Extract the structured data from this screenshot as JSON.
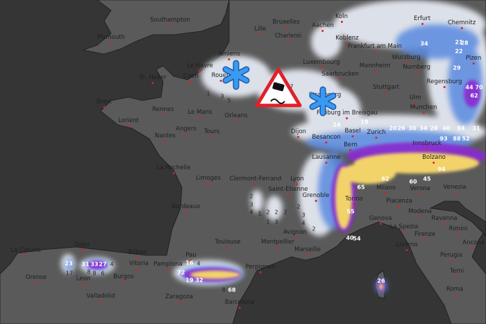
{
  "map": {
    "cities": [
      "Southampton",
      "Plymouth",
      "St. Helier",
      "Le Havre",
      "Caen",
      "Amiens",
      "Rouen",
      "Brest",
      "Rennes",
      "Le Mans",
      "Orleans",
      "Lorient",
      "Angers",
      "Tours",
      "Nantes",
      "La Rochelle",
      "Limoges",
      "Bordeaux",
      "Toulouse",
      "Clermont-Ferrand",
      "Lyon",
      "Saint-Etienne",
      "Grenoble",
      "Avignon",
      "Montpellier",
      "Marseille",
      "Perpignan",
      "Barcelona",
      "Zaragoza",
      "Pamplona",
      "Vitoria",
      "Bilbao",
      "Burgos",
      "Valladolid",
      "Leon",
      "Gijon",
      "La Coruna",
      "Orense",
      "Pau",
      "Bruxelles",
      "Lille",
      "Charleroi",
      "Aachen",
      "Koln",
      "Koblenz",
      "Luxembourg",
      "Saarbrucken",
      "Frankfurt am Main",
      "Mannheim",
      "Stuttgart",
      "Strasbourg",
      "Freiburg im Breisgau",
      "Ulm",
      "Munchen",
      "Nurnberg",
      "Wurzburg",
      "Erfurt",
      "Chemnitz",
      "Plzen",
      "Regensburg",
      "Dijon",
      "Besancon",
      "Basel",
      "Zurich",
      "Bern",
      "Lausanne",
      "Innsbruck",
      "Bolzano",
      "Milano",
      "Torino",
      "Genova",
      "La Spezia",
      "Verona",
      "Venezia",
      "Piacenza",
      "Modena",
      "Ravenna",
      "Rimini",
      "Firenze",
      "Livorno",
      "Ancona",
      "Perugia",
      "Terni",
      "Roma"
    ],
    "snow_values": [
      "23",
      "17",
      "31",
      "33",
      "27",
      "4",
      "8",
      "8",
      "6",
      "16",
      "4",
      "72",
      "19",
      "32",
      "8",
      "68",
      "26",
      "24",
      "19",
      "34",
      "21",
      "28",
      "22",
      "29",
      "44",
      "70",
      "62",
      "20",
      "26",
      "30",
      "34",
      "28",
      "40",
      "84",
      "31",
      "93",
      "88",
      "52",
      "65",
      "55",
      "40",
      "54",
      "94",
      "62",
      "45",
      "60",
      "2",
      "3",
      "4",
      "1",
      "2",
      "2",
      "2",
      "1",
      "3",
      "2",
      "3",
      "4",
      "2",
      "1",
      "3",
      "5",
      "7",
      "6"
    ],
    "icons": [
      "snowflake-icon",
      "slippery-road-warning-icon",
      "snowflake-icon"
    ],
    "colors": {
      "sea": "#353535",
      "land": "#5a5a5a",
      "light_snow": "#e8ecf5",
      "blue": "#5a8ae0",
      "purple": "#8a2ad0",
      "magenta": "#d040c0",
      "yellow": "#f2d36a",
      "snowflake": "#3a9af0",
      "warning_red": "#e0202a"
    }
  }
}
